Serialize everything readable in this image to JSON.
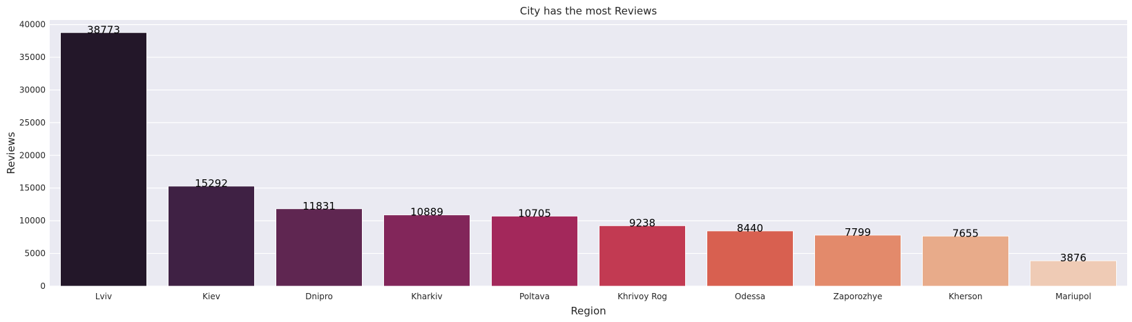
{
  "chart_data": {
    "type": "bar",
    "title": "City has the most Reviews",
    "xlabel": "Region",
    "ylabel": "Reviews",
    "categories": [
      "Lviv",
      "Kiev",
      "Dnipro",
      "Kharkiv",
      "Poltava",
      "Khrivoy Rog",
      "Odessa",
      "Zaporozhye",
      "Kherson",
      "Mariupol"
    ],
    "values": [
      38773,
      15292,
      11831,
      10889,
      10705,
      9238,
      8440,
      7799,
      7655,
      3876
    ],
    "ylim": [
      0,
      40700
    ],
    "yticks": [
      0,
      5000,
      10000,
      15000,
      20000,
      25000,
      30000,
      35000,
      40000
    ],
    "grid": true,
    "colors": [
      "#231729",
      "#3f2144",
      "#5f2651",
      "#82265a",
      "#a3285b",
      "#c23a52",
      "#d86050",
      "#e38a6b",
      "#e8ab8a",
      "#efcbb5"
    ],
    "background": "#eaeaf2"
  }
}
